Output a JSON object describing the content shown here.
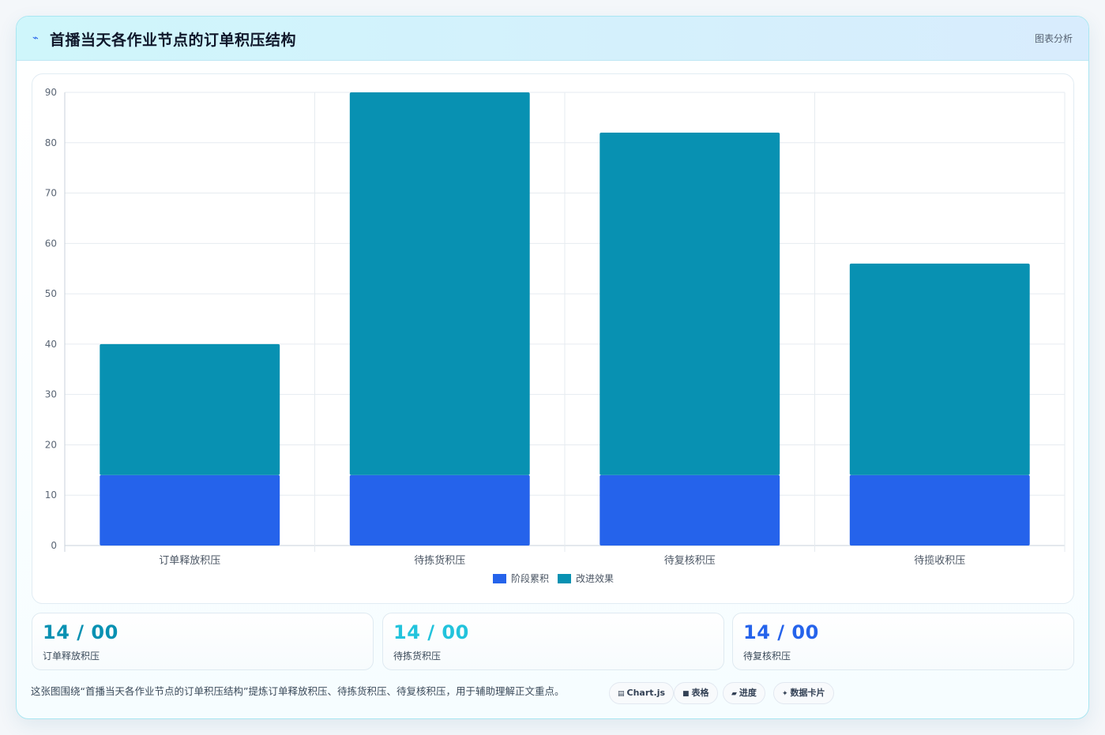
{
  "header": {
    "icon": "lightning-icon",
    "title": "首播当天各作业节点的订单积压结构",
    "tag": "图表分析"
  },
  "chart_data": {
    "type": "bar",
    "stacked": true,
    "categories": [
      "订单释放积压",
      "待拣货积压",
      "待复核积压",
      "待揽收积压"
    ],
    "series": [
      {
        "name": "阶段累积",
        "values": [
          14,
          14,
          14,
          14
        ],
        "color": "#2563eb"
      },
      {
        "name": "改进效果",
        "values": [
          26,
          76,
          68,
          42
        ],
        "color": "#0891b2"
      }
    ],
    "ylim": [
      0,
      90
    ],
    "yticks": [
      0,
      10,
      20,
      30,
      40,
      50,
      60,
      70,
      80,
      90
    ],
    "grid": true,
    "legend_position": "bottom"
  },
  "stats": [
    {
      "value": "14 / 00",
      "label": "订单释放积压",
      "color": "#0891b2"
    },
    {
      "value": "14 / 00",
      "label": "待拣货积压",
      "color": "#22c3dc"
    },
    {
      "value": "14 / 00",
      "label": "待复核积压",
      "color": "#2563eb"
    }
  ],
  "caption": "这张图围绕“首播当天各作业节点的订单积压结构”提炼订单释放积压、待拣货积压、待复核积压，用于辅助理解正文重点。",
  "chips": [
    {
      "icon": "chart-icon",
      "glyph": "▤",
      "label": "Chart.js"
    },
    {
      "icon": "table-icon",
      "glyph": "■",
      "label": "表格"
    },
    {
      "icon": "progress-icon",
      "glyph": "▰",
      "label": "进度"
    },
    {
      "icon": "data-card-icon",
      "glyph": "✦",
      "label": "数据卡片"
    }
  ]
}
